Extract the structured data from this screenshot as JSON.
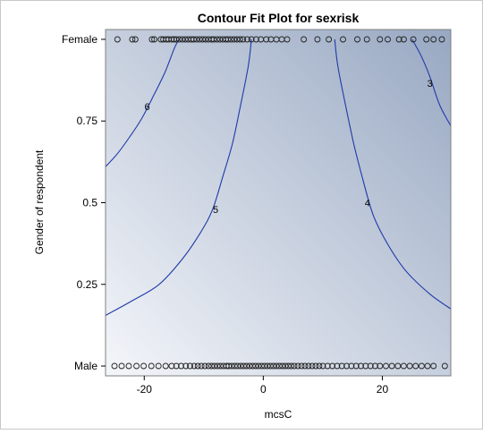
{
  "chart_data": {
    "type": "contour",
    "title": "Contour Fit Plot for sexrisk",
    "xlabel": "mcsC",
    "ylabel": "Gender of respondent",
    "xlim": [
      -26.5,
      31.5
    ],
    "ylim": [
      -0.03,
      1.03
    ],
    "x_ticks": [
      {
        "value": -20,
        "label": "-20"
      },
      {
        "value": 0,
        "label": "0"
      },
      {
        "value": 20,
        "label": "20"
      }
    ],
    "y_ticks": [
      {
        "value": 0,
        "label": "Male"
      },
      {
        "value": 0.25,
        "label": "0.25"
      },
      {
        "value": 0.5,
        "label": "0.5"
      },
      {
        "value": 0.75,
        "label": "0.75"
      },
      {
        "value": 1,
        "label": "Female"
      }
    ],
    "fill_gradient": {
      "low_color": "#f4f6fa",
      "high_color": "#98a8c2"
    },
    "contour_color": "#1f3aa8",
    "marker_color": "#222222",
    "contours": [
      {
        "level": "6",
        "label_at": {
          "x": -19.5,
          "y": 0.795
        },
        "points": [
          [
            -26.5,
            0.61
          ],
          [
            -24.5,
            0.65
          ],
          [
            -22.5,
            0.7
          ],
          [
            -20.5,
            0.755
          ],
          [
            -18.5,
            0.825
          ],
          [
            -16.5,
            0.9
          ],
          [
            -15,
            0.97
          ],
          [
            -14.2,
            1.0
          ]
        ]
      },
      {
        "level": "5",
        "label_at": {
          "x": -8,
          "y": 0.48
        },
        "points": [
          [
            -26.5,
            0.155
          ],
          [
            -22,
            0.2
          ],
          [
            -17.5,
            0.25
          ],
          [
            -13.5,
            0.33
          ],
          [
            -10.5,
            0.41
          ],
          [
            -8.5,
            0.48
          ],
          [
            -6.8,
            0.58
          ],
          [
            -5.2,
            0.68
          ],
          [
            -3.8,
            0.8
          ],
          [
            -2.5,
            0.92
          ],
          [
            -2,
            1.0
          ]
        ]
      },
      {
        "level": "4",
        "label_at": {
          "x": 17.5,
          "y": 0.5
        },
        "points": [
          [
            12,
            1.0
          ],
          [
            12.5,
            0.92
          ],
          [
            13.8,
            0.8
          ],
          [
            15.2,
            0.68
          ],
          [
            16.6,
            0.58
          ],
          [
            18.5,
            0.46
          ],
          [
            21,
            0.37
          ],
          [
            24,
            0.29
          ],
          [
            28,
            0.22
          ],
          [
            31.5,
            0.175
          ]
        ]
      },
      {
        "level": "3",
        "label_at": {
          "x": 28,
          "y": 0.865
        },
        "points": [
          [
            25,
            1.0
          ],
          [
            26.5,
            0.95
          ],
          [
            28,
            0.885
          ],
          [
            29.6,
            0.8
          ],
          [
            31.5,
            0.735
          ]
        ]
      }
    ],
    "observations": {
      "Female": [
        -24.5,
        -22,
        -21.5,
        -18.7,
        -18.3,
        -17.2,
        -16.8,
        -16.3,
        -15.9,
        -15.4,
        -15.0,
        -14.6,
        -14.1,
        -13.6,
        -13.1,
        -12.6,
        -12.1,
        -11.7,
        -11.2,
        -10.7,
        -10.2,
        -9.7,
        -9.2,
        -8.7,
        -8.3,
        -7.8,
        -7.3,
        -6.8,
        -6.3,
        -5.9,
        -5.4,
        -4.9,
        -4.4,
        -3.9,
        -3.4,
        -2.7,
        -2.0,
        -1.2,
        -0.4,
        0.5,
        1.3,
        2.2,
        3.1,
        4.0,
        6.8,
        9.1,
        11.0,
        13.4,
        15.8,
        17.4,
        19.6,
        20.9,
        22.8,
        23.6,
        25.2,
        27.4,
        28.6,
        30.0
      ],
      "Male": [
        -25,
        -23.8,
        -22.6,
        -21.3,
        -20.1,
        -18.8,
        -17.6,
        -16.4,
        -15.4,
        -14.6,
        -13.8,
        -13.0,
        -12.3,
        -11.6,
        -11.0,
        -10.4,
        -9.8,
        -9.2,
        -8.7,
        -8.2,
        -7.7,
        -7.2,
        -6.7,
        -6.2,
        -5.8,
        -5.3,
        -4.8,
        -4.3,
        -3.8,
        -3.3,
        -2.8,
        -2.3,
        -1.8,
        -1.3,
        -0.8,
        -0.3,
        0.2,
        0.7,
        1.2,
        1.7,
        2.2,
        2.7,
        3.2,
        3.7,
        4.2,
        4.7,
        5.2,
        5.8,
        6.4,
        7.0,
        7.6,
        8.2,
        8.8,
        9.4,
        10.0,
        10.8,
        11.6,
        12.4,
        13.2,
        14.0,
        14.8,
        15.6,
        16.4,
        17.2,
        18.0,
        18.8,
        19.6,
        20.6,
        21.6,
        22.6,
        23.6,
        24.6,
        25.6,
        26.6,
        27.6,
        28.6,
        30.5
      ]
    }
  }
}
